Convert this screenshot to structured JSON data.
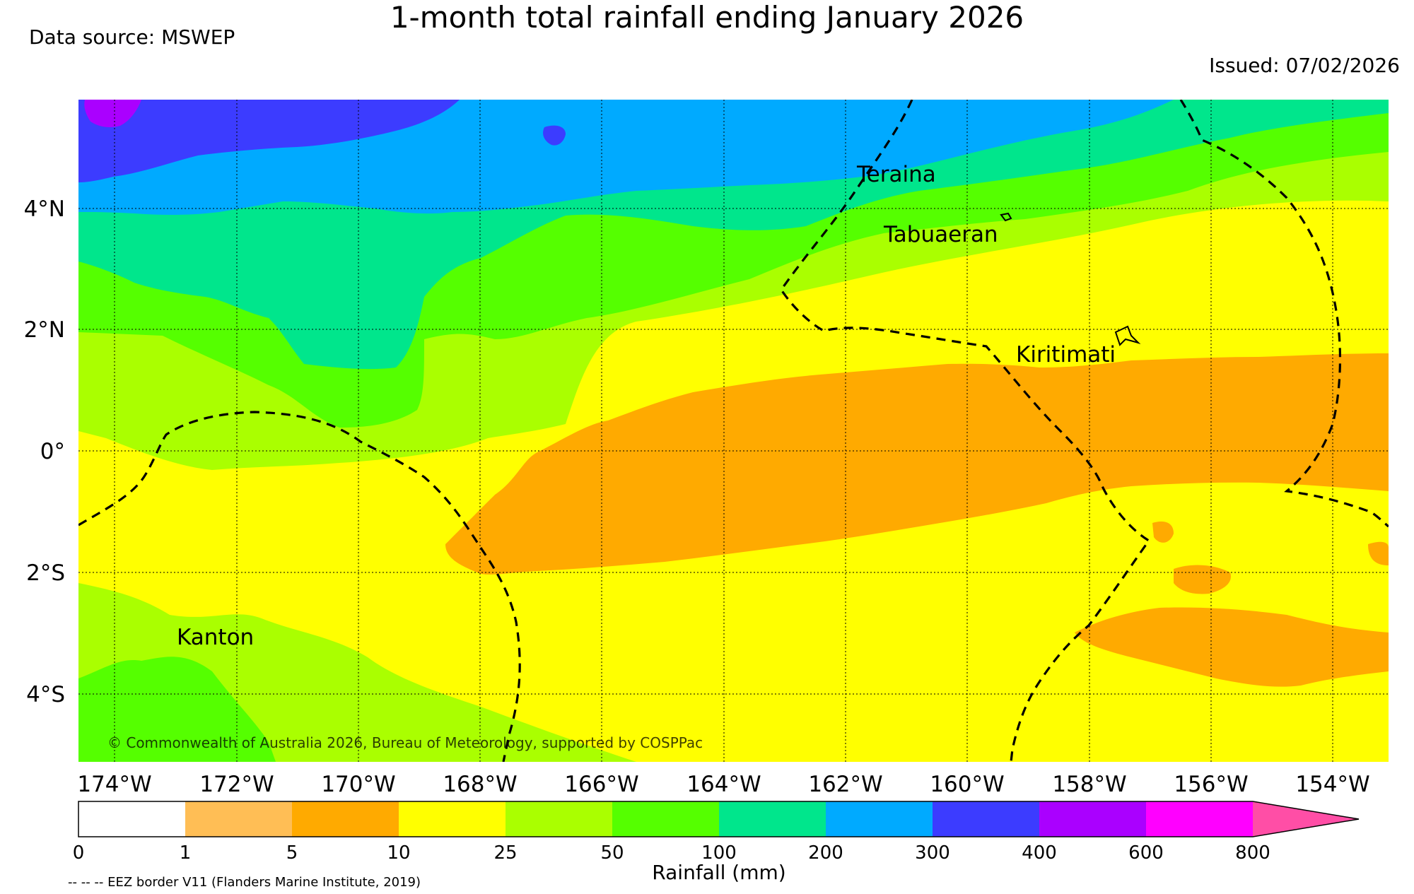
{
  "header": {
    "title": "1-month total rainfall ending January 2026",
    "source": "Data source: MSWEP",
    "issued": "Issued: 07/02/2026"
  },
  "axes": {
    "lat_labels": [
      "4°N",
      "2°N",
      "0°",
      "2°S",
      "4°S"
    ],
    "lon_labels": [
      "174°W",
      "172°W",
      "170°W",
      "168°W",
      "166°W",
      "164°W",
      "162°W",
      "160°W",
      "158°W",
      "156°W",
      "154°W"
    ]
  },
  "places": {
    "teraina": "Teraina",
    "tabuaeran": "Tabuaeran",
    "kiritimati": "Kiritimati",
    "kanton": "Kanton"
  },
  "copyright": "© Commonwealth of Australia 2026, Bureau of Meteorology, supported by COSPPac",
  "colorbar": {
    "title": "Rainfall (mm)",
    "ticks": [
      "0",
      "1",
      "5",
      "10",
      "25",
      "50",
      "100",
      "200",
      "300",
      "400",
      "600",
      "800"
    ],
    "colors": [
      "#ffffff",
      "#ffbe55",
      "#ffaa00",
      "#ffff00",
      "#aaff00",
      "#55ff00",
      "#00e68c",
      "#00aaff",
      "#3c3cff",
      "#aa00ff",
      "#ff00ff",
      "#ff4ea6"
    ]
  },
  "map_colors": {
    "c10": "#ffff00",
    "c5": "#ffaa00",
    "c25": "#aaff00",
    "c50": "#55ff00",
    "c100": "#00e68c",
    "c200": "#00aaff",
    "c300": "#3c3cff",
    "c400": "#aa00ff"
  },
  "legend_note": "-- -- -- EEZ border V11 (Flanders Marine Institute, 2019)"
}
